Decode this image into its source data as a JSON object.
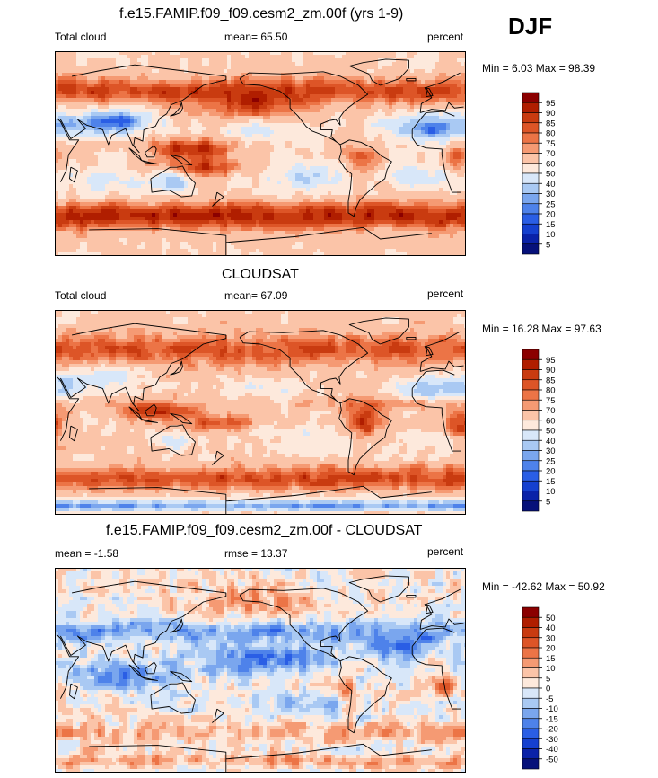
{
  "season": "DJF",
  "panels": [
    {
      "title": "f.e15.FAMIP.f09_f09.cesm2_zm.00f (yrs 1-9)",
      "left_label": "Total cloud",
      "center_label": "mean=  65.50",
      "right_label": "percent",
      "minmax": "Min =   6.03 Max =  98.39",
      "colorbar_levels": [
        "95",
        "90",
        "85",
        "80",
        "75",
        "70",
        "60",
        "50",
        "40",
        "30",
        "25",
        "20",
        "15",
        "10",
        "5"
      ],
      "colorbar_colors": [
        "#8b0000",
        "#b01e00",
        "#c93b10",
        "#dd5527",
        "#ec7446",
        "#f59a73",
        "#fbc4a8",
        "#fde9dc",
        "#d8e7f9",
        "#a9c9f3",
        "#7aa6ee",
        "#4e82ea",
        "#2a5ee5",
        "#1540cf",
        "#0a22a8",
        "#06117a"
      ],
      "field": "model"
    },
    {
      "title": "CLOUDSAT",
      "left_label": "Total cloud",
      "center_label": "mean=  67.09",
      "right_label": "percent",
      "minmax": "Min =  16.28 Max =  97.63",
      "colorbar_levels": [
        "95",
        "90",
        "85",
        "80",
        "75",
        "70",
        "60",
        "50",
        "40",
        "30",
        "25",
        "20",
        "15",
        "10",
        "5"
      ],
      "colorbar_colors": [
        "#8b0000",
        "#b01e00",
        "#c93b10",
        "#dd5527",
        "#ec7446",
        "#f59a73",
        "#fbc4a8",
        "#fde9dc",
        "#d8e7f9",
        "#a9c9f3",
        "#7aa6ee",
        "#4e82ea",
        "#2a5ee5",
        "#1540cf",
        "#0a22a8",
        "#06117a"
      ],
      "field": "obs"
    },
    {
      "title": "f.e15.FAMIP.f09_f09.cesm2_zm.00f - CLOUDSAT",
      "left_label": "mean =  -1.58",
      "center_label": "rmse =  13.37",
      "right_label": "percent",
      "minmax": "Min = -42.62 Max =  50.92",
      "colorbar_levels": [
        "50",
        "40",
        "30",
        "20",
        "15",
        "10",
        "5",
        "0",
        "-5",
        "-10",
        "-15",
        "-20",
        "-30",
        "-40",
        "-50"
      ],
      "colorbar_colors": [
        "#8b0000",
        "#b01e00",
        "#c93b10",
        "#dd5527",
        "#ec7446",
        "#f59a73",
        "#fbc4a8",
        "#fde9dc",
        "#d8e7f9",
        "#a9c9f3",
        "#7aa6ee",
        "#4e82ea",
        "#2a5ee5",
        "#1540cf",
        "#0a22a8",
        "#06117a"
      ],
      "field": "diff"
    }
  ],
  "chart_data": [
    {
      "type": "heatmap",
      "title": "f.e15.FAMIP.f09_f09.cesm2_zm.00f (yrs 1-9)",
      "variable": "Total cloud",
      "units": "percent",
      "mean": 65.5,
      "min": 6.03,
      "max": 98.39,
      "levels": [
        5,
        10,
        15,
        20,
        25,
        30,
        40,
        50,
        60,
        70,
        75,
        80,
        85,
        90,
        95
      ]
    },
    {
      "type": "heatmap",
      "title": "CLOUDSAT",
      "variable": "Total cloud",
      "units": "percent",
      "mean": 67.09,
      "min": 16.28,
      "max": 97.63,
      "levels": [
        5,
        10,
        15,
        20,
        25,
        30,
        40,
        50,
        60,
        70,
        75,
        80,
        85,
        90,
        95
      ]
    },
    {
      "type": "heatmap",
      "title": "f.e15.FAMIP.f09_f09.cesm2_zm.00f - CLOUDSAT",
      "units": "percent",
      "mean": -1.58,
      "rmse": 13.37,
      "min": -42.62,
      "max": 50.92,
      "levels": [
        -50,
        -40,
        -30,
        -20,
        -15,
        -10,
        -5,
        0,
        5,
        10,
        15,
        20,
        30,
        40,
        50
      ]
    }
  ]
}
